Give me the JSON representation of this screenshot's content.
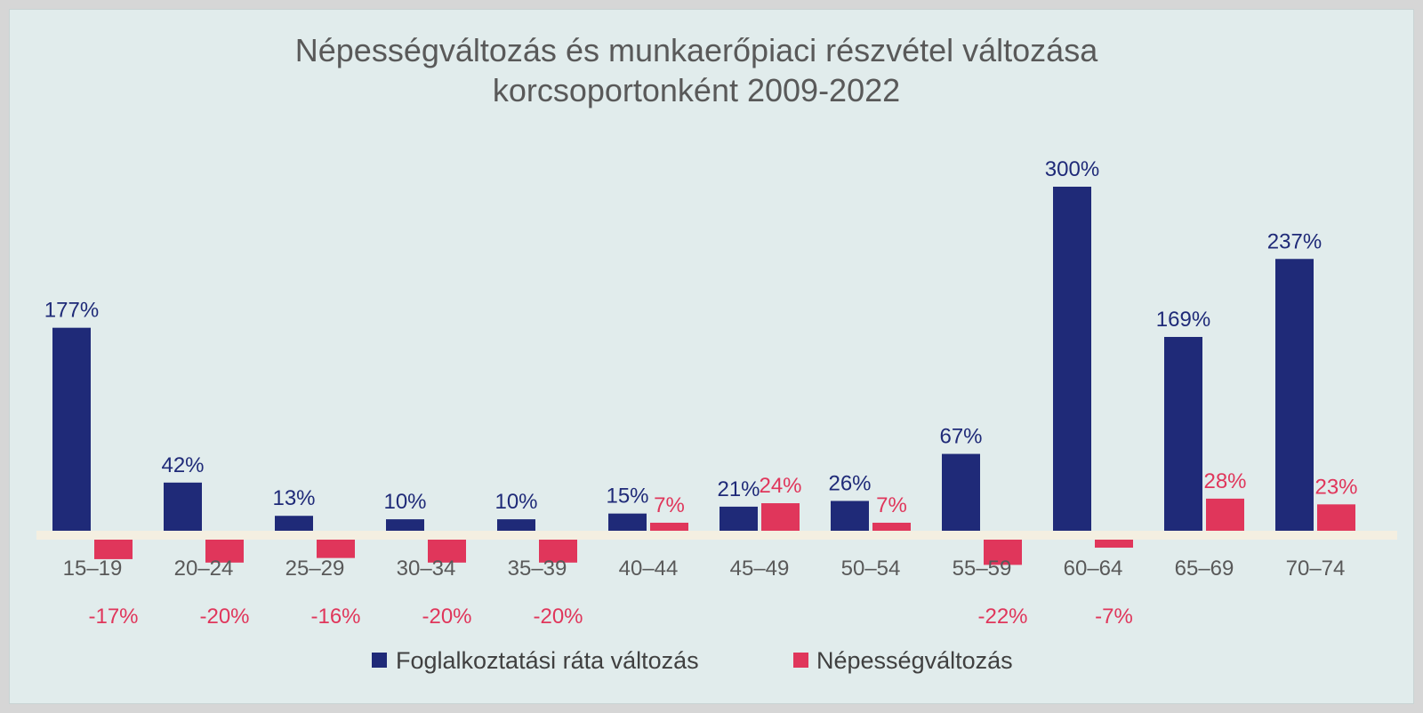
{
  "chart_data": {
    "type": "bar",
    "title_lines": [
      "Népességváltozás és munkaerőpiaci részvétel változása",
      "korcsoportonként 2009-2022"
    ],
    "categories": [
      "15–19",
      "20–24",
      "25–29",
      "30–34",
      "35–39",
      "40–44",
      "45–49",
      "50–54",
      "55–59",
      "60–64",
      "65–69",
      "70–74"
    ],
    "series": [
      {
        "name": "Foglalkoztatási ráta változás",
        "color": "#1f2a78",
        "values": [
          177,
          42,
          13,
          10,
          10,
          15,
          21,
          26,
          67,
          300,
          169,
          237
        ],
        "labels": [
          "177%",
          "42%",
          "13%",
          "10%",
          "10%",
          "15%",
          "21%",
          "26%",
          "67%",
          "300%",
          "169%",
          "237%"
        ]
      },
      {
        "name": "Népességváltozás",
        "color": "#e0365b",
        "values": [
          -17,
          -20,
          -16,
          -20,
          -20,
          7,
          24,
          7,
          -22,
          -7,
          28,
          23
        ],
        "labels": [
          "-17%",
          "-20%",
          "-16%",
          "-20%",
          "-20%",
          "7%",
          "24%",
          "7%",
          "-22%",
          "-7%",
          "28%",
          "23%"
        ]
      }
    ],
    "zero_line_color": "#f4efe1",
    "grid": false,
    "legend_position": "bottom"
  }
}
